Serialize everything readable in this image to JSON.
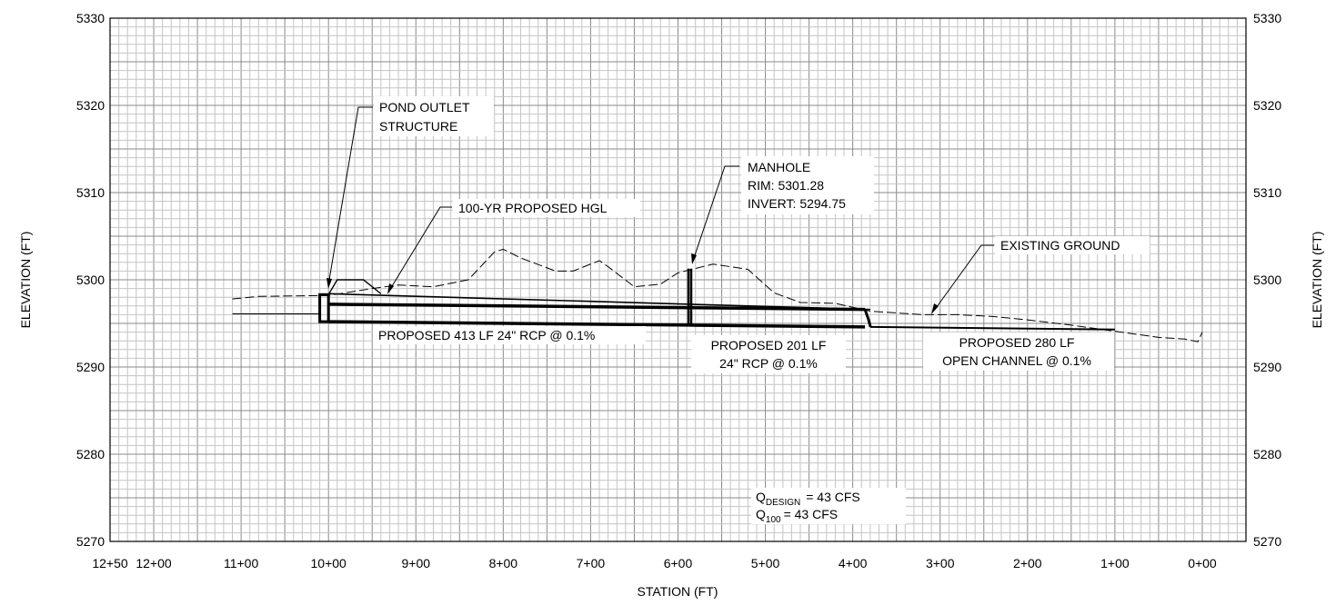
{
  "axes": {
    "xlabel": "STATION (FT)",
    "ylabel": "ELEVATION (FT)",
    "x_ticks": [
      {
        "v": 1250,
        "label": "12+50"
      },
      {
        "v": 1200,
        "label": "12+00"
      },
      {
        "v": 1100,
        "label": "11+00"
      },
      {
        "v": 1000,
        "label": "10+00"
      },
      {
        "v": 900,
        "label": "9+00"
      },
      {
        "v": 800,
        "label": "8+00"
      },
      {
        "v": 700,
        "label": "7+00"
      },
      {
        "v": 600,
        "label": "6+00"
      },
      {
        "v": 500,
        "label": "5+00"
      },
      {
        "v": 400,
        "label": "4+00"
      },
      {
        "v": 300,
        "label": "3+00"
      },
      {
        "v": 200,
        "label": "2+00"
      },
      {
        "v": 100,
        "label": "1+00"
      },
      {
        "v": 0,
        "label": "0+00"
      }
    ],
    "y_ticks": [
      "5270",
      "5280",
      "5290",
      "5300",
      "5310",
      "5320",
      "5330"
    ],
    "x_range": [
      1250,
      -50
    ],
    "y_range": [
      5270,
      5330
    ],
    "x_reversed": true
  },
  "labels": {
    "pond_outlet": [
      "POND OUTLET",
      "STRUCTURE"
    ],
    "hgl": "100-YR PROPOSED HGL",
    "manhole": [
      "MANHOLE",
      "RIM: 5301.28",
      "INVERT: 5294.75"
    ],
    "existing_ground": "EXISTING GROUND",
    "pipe_413": "PROPOSED 413 LF 24\" RCP @ 0.1%",
    "pipe_201": [
      "PROPOSED 201 LF",
      "24\" RCP @ 0.1%"
    ],
    "channel_280": [
      "PROPOSED 280 LF",
      "OPEN CHANNEL @ 0.1%"
    ]
  },
  "flow": {
    "design_main": "Q",
    "design_sub": "DESIGN",
    "design_value": "=   43 CFS",
    "q100_main": "Q",
    "q100_sub": "100",
    "q100_value": "= 43 CFS"
  },
  "chart_data": {
    "type": "line",
    "xlabel": "STATION (FT)",
    "ylabel": "ELEVATION (FT)",
    "xlim": [
      1250,
      -50
    ],
    "ylim": [
      5270,
      5330
    ],
    "grid": true,
    "series": [
      {
        "name": "EXISTING GROUND",
        "style": "dashed",
        "x": [
          1110,
          1080,
          1000,
          950,
          920,
          880,
          840,
          810,
          800,
          780,
          740,
          720,
          690,
          680,
          650,
          620,
          600,
          560,
          520,
          490,
          460,
          420,
          380,
          320,
          280,
          240,
          200,
          150,
          100,
          50,
          20,
          5,
          0
        ],
        "y": [
          5297.8,
          5298.1,
          5298.2,
          5299.0,
          5299.4,
          5299.2,
          5300.0,
          5303.2,
          5303.5,
          5302.5,
          5301.0,
          5301.0,
          5302.2,
          5301.5,
          5299.2,
          5299.5,
          5300.8,
          5301.8,
          5301.2,
          5298.5,
          5297.4,
          5297.3,
          5296.4,
          5296.0,
          5296.0,
          5295.8,
          5295.4,
          5294.8,
          5294.1,
          5293.4,
          5293.2,
          5292.9,
          5294.0
        ]
      },
      {
        "name": "100-YR PROPOSED HGL",
        "style": "solid",
        "x": [
          1000,
          830,
          380
        ],
        "y": [
          5298.4,
          5297.9,
          5296.6
        ]
      }
    ],
    "pipes": [
      {
        "label": "PROPOSED 413 LF 24\" RCP @ 0.1%",
        "from_sta": 1000,
        "to_sta": 587,
        "invert_start": 5295.2,
        "invert_end": 5294.8,
        "diameter_ft": 2
      },
      {
        "label": "PROPOSED 201 LF 24\" RCP @ 0.1%",
        "from_sta": 587,
        "to_sta": 386,
        "invert_start": 5294.8,
        "invert_end": 5294.6,
        "diameter_ft": 2
      },
      {
        "label": "PROPOSED 280 LF OPEN CHANNEL @ 0.1%",
        "from_sta": 380,
        "to_sta": 100,
        "invert_start": 5294.6,
        "invert_end": 5294.3
      }
    ],
    "structures": [
      {
        "name": "POND OUTLET STRUCTURE",
        "sta": 1010,
        "bottom": 5295.2,
        "top": 5298.3
      },
      {
        "name": "MANHOLE",
        "sta": 587,
        "rim": 5301.28,
        "invert": 5294.75
      }
    ],
    "flows": {
      "q_design_cfs": 43,
      "q100_cfs": 43
    }
  }
}
